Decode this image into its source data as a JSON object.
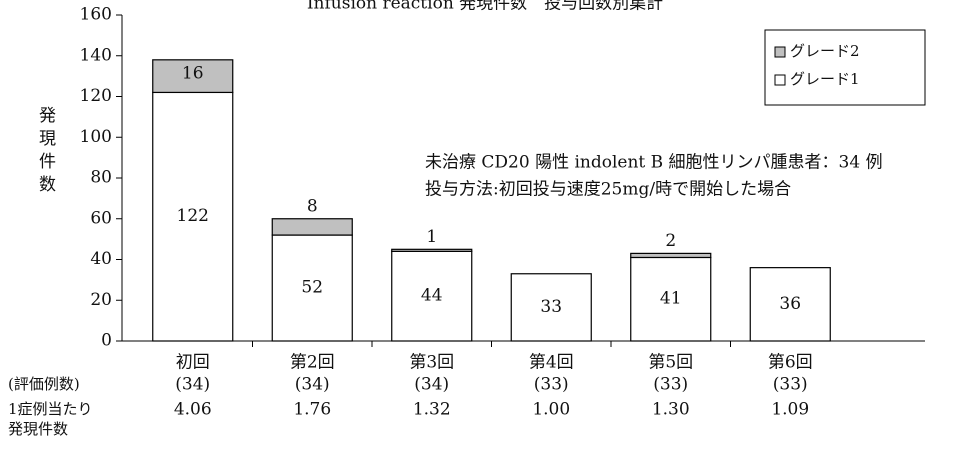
{
  "chart_data": {
    "type": "stacked-bar",
    "title": "Infusion reaction 発現件数　投与回数別集計",
    "y_label": "発現件数",
    "categories": [
      "初回",
      "第2回",
      "第3回",
      "第4回",
      "第5回",
      "第6回"
    ],
    "series": [
      {
        "name": "グレード1",
        "color": "#ffffff",
        "values": [
          122,
          52,
          44,
          33,
          41,
          36
        ]
      },
      {
        "name": "グレード2",
        "color": "#c0c0c0",
        "values": [
          16,
          8,
          1,
          0,
          2,
          0
        ]
      }
    ],
    "ylim": [
      0,
      160
    ],
    "yticks": [
      0,
      20,
      40,
      60,
      80,
      100,
      120,
      140,
      160
    ],
    "legend": "top-right",
    "annotations": [
      "未治療 CD20 陽性 indolent B 細胞性リンパ腫患者：34 例",
      "投与方法:初回投与速度25mg/時で開始した場合"
    ],
    "table": {
      "rows": [
        {
          "label": [
            "(評価例数)"
          ],
          "values": [
            "(34)",
            "(34)",
            "(34)",
            "(33)",
            "(33)",
            "(33)"
          ]
        },
        {
          "label": [
            "1症例当たり",
            "発現件数"
          ],
          "values": [
            "4.06",
            "1.76",
            "1.32",
            "1.00",
            "1.30",
            "1.09"
          ]
        }
      ]
    }
  }
}
